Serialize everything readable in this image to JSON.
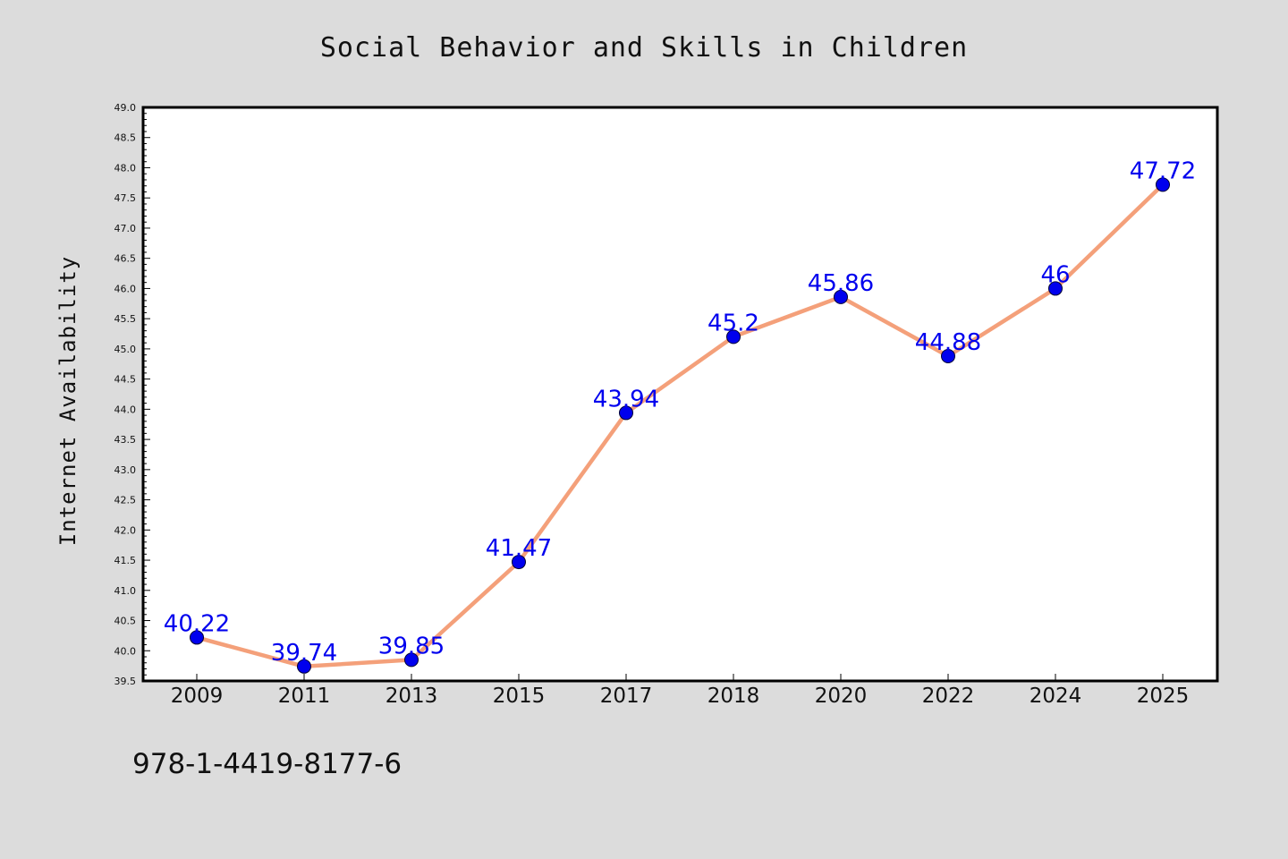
{
  "colors": {
    "background": "#dcdcdc",
    "plot_background": "#ffffff",
    "line": "#f4a07a",
    "marker": "#0000ee",
    "data_label": "#0000ee"
  },
  "footer": {
    "isbn": "978-1-4419-8177-6"
  },
  "chart_data": {
    "type": "line",
    "title": "Social Behavior and Skills in Children",
    "xlabel": "",
    "ylabel": "Internet Availability",
    "categories": [
      "2009",
      "2011",
      "2013",
      "2015",
      "2017",
      "2018",
      "2020",
      "2022",
      "2024",
      "2025"
    ],
    "series": [
      {
        "values": [
          40.22,
          39.74,
          39.85,
          41.47,
          43.94,
          45.2,
          45.86,
          44.88,
          46,
          47.72
        ],
        "labels": [
          "40.22",
          "39.74",
          "39.85",
          "41.47",
          "43.94",
          "45.2",
          "45.86",
          "44.88",
          "46",
          "47.72"
        ]
      }
    ],
    "ylim": [
      39.5,
      49.0
    ],
    "yticks": [
      "39.5",
      "40.0",
      "40.5",
      "41.0",
      "41.5",
      "42.0",
      "42.5",
      "43.0",
      "43.5",
      "44.0",
      "44.5",
      "45.0",
      "45.5",
      "46.0",
      "46.5",
      "47.0",
      "47.5",
      "48.0",
      "48.5",
      "49.0"
    ],
    "grid": false,
    "legend": "none",
    "markers": true
  }
}
